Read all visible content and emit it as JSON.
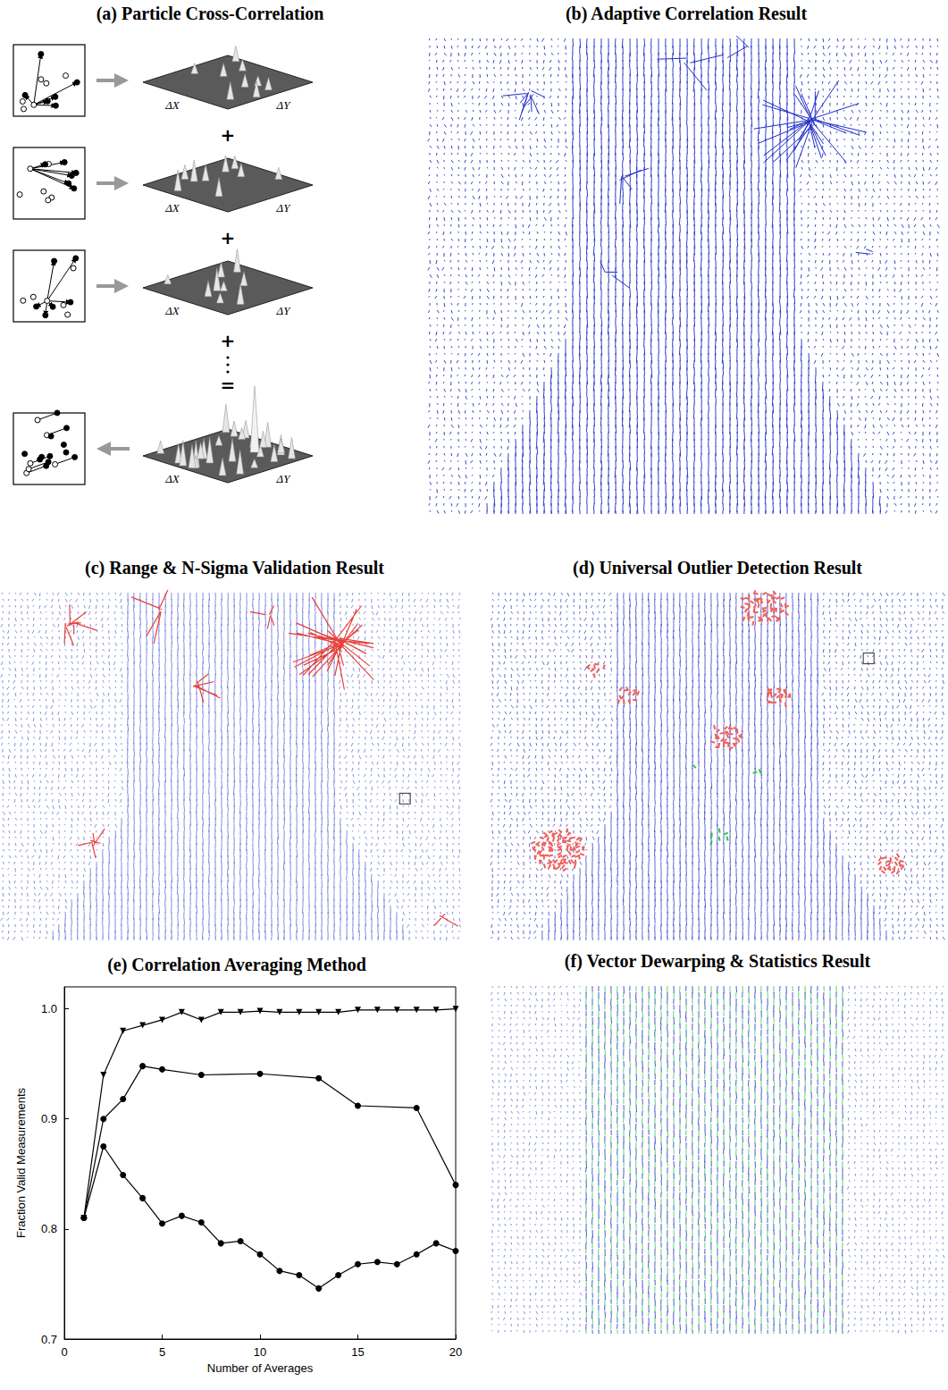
{
  "panels": {
    "a": {
      "title": "(a) Particle Cross-Correlation",
      "axis_labels": {
        "x": "ΔX",
        "y": "ΔY"
      },
      "operators": [
        "+",
        "+",
        "+",
        "="
      ]
    },
    "b": {
      "title": "(b) Adaptive Correlation Result"
    },
    "c": {
      "title": "(c) Range & N-Sigma Validation Result"
    },
    "d": {
      "title": "(d) Universal Outlier Detection Result"
    },
    "f": {
      "title": "(f) Vector Dewarping & Statistics Result"
    }
  },
  "chart_data": {
    "type": "line",
    "title": "(e) Correlation Averaging Method",
    "x_label": "Number of Averages",
    "y_label": "Fraction Valid Measurements",
    "xlim": [
      0,
      20
    ],
    "xticks": [
      0,
      5,
      10,
      15,
      20
    ],
    "ylim": [
      0.7,
      1.02
    ],
    "yticks": [
      0.7,
      0.8,
      0.9,
      {
        "value": 1,
        "label": "1.0"
      }
    ],
    "grid": false,
    "series": [
      {
        "color": "#000000",
        "marker": "triangle-down",
        "line_style": "solid",
        "x": [
          1,
          2,
          3,
          4,
          5,
          6,
          7,
          8,
          9,
          10,
          11,
          12,
          13,
          14,
          15,
          16,
          17,
          18,
          19,
          20
        ],
        "values": [
          0.81,
          0.94,
          0.98,
          0.985,
          0.99,
          0.997,
          0.99,
          0.997,
          0.997,
          0.998,
          0.997,
          0.997,
          0.997,
          0.997,
          0.999,
          0.999,
          0.999,
          0.999,
          0.999,
          1.0
        ]
      },
      {
        "color": "#000000",
        "marker": "circle",
        "line_style": "solid",
        "x": [
          1,
          2,
          3,
          4,
          5,
          7,
          10,
          13,
          15,
          18,
          20
        ],
        "values": [
          0.81,
          0.9,
          0.918,
          0.948,
          0.945,
          0.94,
          0.941,
          0.937,
          0.912,
          0.91,
          0.84
        ]
      },
      {
        "color": "#000000",
        "marker": "circle",
        "line_style": "solid",
        "x": [
          1,
          2,
          3,
          4,
          5,
          6,
          7,
          8,
          9,
          10,
          11,
          12,
          13,
          14,
          15,
          16,
          17,
          18,
          19,
          20
        ],
        "values": [
          0.81,
          0.875,
          0.849,
          0.828,
          0.805,
          0.812,
          0.806,
          0.787,
          0.789,
          0.777,
          0.762,
          0.758,
          0.746,
          0.758,
          0.768,
          0.77,
          0.768,
          0.777,
          0.787,
          0.78
        ]
      }
    ]
  }
}
